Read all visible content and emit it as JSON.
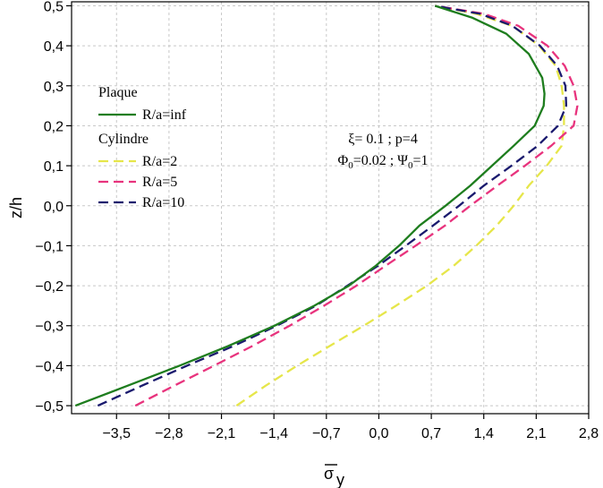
{
  "chart_data": {
    "type": "line",
    "xlabel": "σ",
    "xlabel_sub": "y",
    "ylabel": "z/h",
    "xlim": [
      -4.1,
      2.8
    ],
    "ylim": [
      -0.52,
      0.51
    ],
    "xticks": [
      -3.5,
      -2.8,
      -2.1,
      -1.4,
      -0.7,
      0.0,
      0.7,
      1.4,
      2.1,
      2.8
    ],
    "xtick_labels": [
      "−3,5",
      "−2,8",
      "−2,1",
      "−1,4",
      "−0,7",
      "0,0",
      "0,7",
      "1,4",
      "2,1",
      "2,8"
    ],
    "yticks": [
      -0.5,
      -0.4,
      -0.3,
      -0.2,
      -0.1,
      0.0,
      0.1,
      0.2,
      0.3,
      0.4,
      0.5
    ],
    "ytick_labels": [
      "−0,5",
      "−0,4",
      "−0,3",
      "−0,2",
      "−0,1",
      "0,0",
      "0,1",
      "0,2",
      "0,3",
      "0,4",
      "0,5"
    ],
    "grid": true,
    "legend": {
      "position": "left",
      "groups": [
        {
          "title": "Plaque",
          "entries": [
            0
          ]
        },
        {
          "title": "Cylindre",
          "entries": [
            1,
            2,
            3
          ]
        }
      ]
    },
    "annotation_lines": [
      [
        "ξ= 0.1 ; p=4"
      ],
      [
        "Φ",
        "0",
        "=0.02 ; Ψ",
        "0",
        "=1"
      ]
    ],
    "series": [
      {
        "name": "R/a=inf",
        "color": "#1e7d1e",
        "dash": "solid",
        "points": [
          [
            -4.05,
            -0.5
          ],
          [
            -3.35,
            -0.45
          ],
          [
            -2.66,
            -0.4
          ],
          [
            -2.0,
            -0.35
          ],
          [
            -1.39,
            -0.3
          ],
          [
            -0.86,
            -0.25
          ],
          [
            -0.4,
            -0.2
          ],
          [
            -0.04,
            -0.15
          ],
          [
            0.27,
            -0.1
          ],
          [
            0.54,
            -0.05
          ],
          [
            0.89,
            0.0
          ],
          [
            1.22,
            0.05
          ],
          [
            1.51,
            0.1
          ],
          [
            1.8,
            0.15
          ],
          [
            2.08,
            0.2
          ],
          [
            2.2,
            0.25
          ],
          [
            2.21,
            0.28
          ],
          [
            2.18,
            0.32
          ],
          [
            2.0,
            0.38
          ],
          [
            1.7,
            0.43
          ],
          [
            1.25,
            0.47
          ],
          [
            0.75,
            0.5
          ]
        ]
      },
      {
        "name": "R/a=2",
        "color": "#e6e64a",
        "dash": "dashed",
        "points": [
          [
            -1.9,
            -0.5
          ],
          [
            -1.51,
            -0.45
          ],
          [
            -1.09,
            -0.4
          ],
          [
            -0.65,
            -0.35
          ],
          [
            -0.2,
            -0.3
          ],
          [
            0.23,
            -0.25
          ],
          [
            0.64,
            -0.2
          ],
          [
            1.0,
            -0.15
          ],
          [
            1.3,
            -0.1
          ],
          [
            1.57,
            -0.05
          ],
          [
            1.8,
            0.0
          ],
          [
            2.0,
            0.05
          ],
          [
            2.24,
            0.1
          ],
          [
            2.44,
            0.15
          ],
          [
            2.47,
            0.2
          ],
          [
            2.47,
            0.25
          ],
          [
            2.44,
            0.3
          ],
          [
            2.36,
            0.35
          ],
          [
            2.14,
            0.4
          ],
          [
            1.78,
            0.45
          ],
          [
            1.3,
            0.48
          ],
          [
            0.75,
            0.5
          ]
        ]
      },
      {
        "name": "R/a=5",
        "color": "#e8337d",
        "dash": "dashed",
        "points": [
          [
            -3.25,
            -0.5
          ],
          [
            -2.73,
            -0.45
          ],
          [
            -2.2,
            -0.4
          ],
          [
            -1.68,
            -0.35
          ],
          [
            -1.19,
            -0.3
          ],
          [
            -0.73,
            -0.25
          ],
          [
            -0.3,
            -0.2
          ],
          [
            0.09,
            -0.15
          ],
          [
            0.49,
            -0.1
          ],
          [
            0.88,
            -0.05
          ],
          [
            1.22,
            0.0
          ],
          [
            1.58,
            0.05
          ],
          [
            1.95,
            0.1
          ],
          [
            2.3,
            0.15
          ],
          [
            2.6,
            0.2
          ],
          [
            2.65,
            0.25
          ],
          [
            2.6,
            0.3
          ],
          [
            2.48,
            0.35
          ],
          [
            2.25,
            0.4
          ],
          [
            1.86,
            0.45
          ],
          [
            1.4,
            0.48
          ],
          [
            0.75,
            0.5
          ]
        ]
      },
      {
        "name": "R/a=10",
        "color": "#1a1a6e",
        "dash": "dashed",
        "points": [
          [
            -3.75,
            -0.5
          ],
          [
            -3.16,
            -0.45
          ],
          [
            -2.56,
            -0.4
          ],
          [
            -1.93,
            -0.35
          ],
          [
            -1.36,
            -0.3
          ],
          [
            -0.84,
            -0.25
          ],
          [
            -0.42,
            -0.2
          ],
          [
            -0.01,
            -0.15
          ],
          [
            0.36,
            -0.1
          ],
          [
            0.72,
            -0.05
          ],
          [
            1.07,
            0.0
          ],
          [
            1.4,
            0.05
          ],
          [
            1.77,
            0.1
          ],
          [
            2.12,
            0.15
          ],
          [
            2.39,
            0.2
          ],
          [
            2.5,
            0.25
          ],
          [
            2.49,
            0.3
          ],
          [
            2.38,
            0.35
          ],
          [
            2.15,
            0.4
          ],
          [
            1.78,
            0.45
          ],
          [
            1.35,
            0.48
          ],
          [
            0.75,
            0.5
          ]
        ]
      }
    ]
  }
}
